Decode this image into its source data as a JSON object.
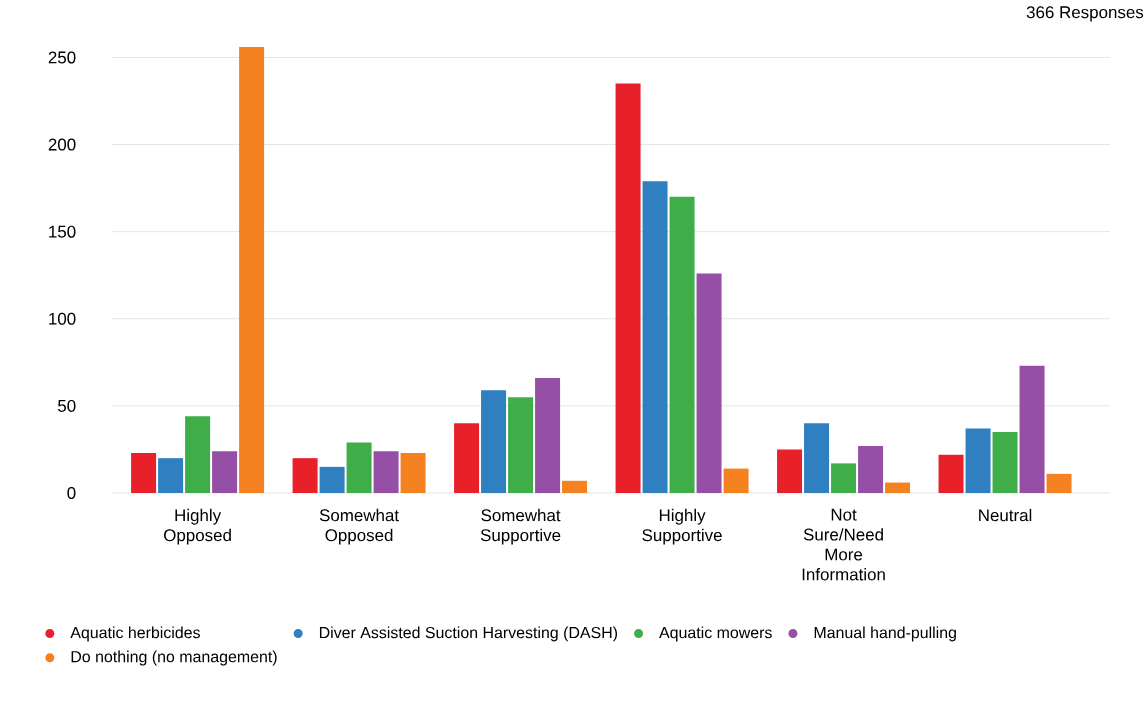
{
  "chart_data": {
    "type": "bar",
    "annotations": [
      "366 Responses"
    ],
    "categories": [
      "Highly Opposed",
      "Somewhat Opposed",
      "Somewhat Supportive",
      "Highly Supportive",
      "Not Sure/Need More Information",
      "Neutral"
    ],
    "series": [
      {
        "name": "Aquatic herbicides",
        "color": "#e8202a",
        "values": [
          23,
          20,
          40,
          235,
          25,
          22
        ]
      },
      {
        "name": "Diver Assisted Suction Harvesting (DASH)",
        "color": "#2f7fc1",
        "values": [
          20,
          15,
          59,
          179,
          40,
          37
        ]
      },
      {
        "name": "Aquatic mowers",
        "color": "#3fae49",
        "values": [
          44,
          29,
          55,
          170,
          17,
          35
        ]
      },
      {
        "name": "Manual hand-pulling",
        "color": "#954fa4",
        "values": [
          24,
          24,
          66,
          126,
          27,
          73
        ]
      },
      {
        "name": "Do nothing (no management)",
        "color": "#f58220",
        "values": [
          256,
          23,
          7,
          14,
          6,
          11
        ]
      }
    ],
    "ylim": [
      0,
      256
    ],
    "yticks": [
      0,
      50,
      100,
      150,
      200,
      250
    ],
    "grid": "y",
    "legend": "bottom left"
  }
}
